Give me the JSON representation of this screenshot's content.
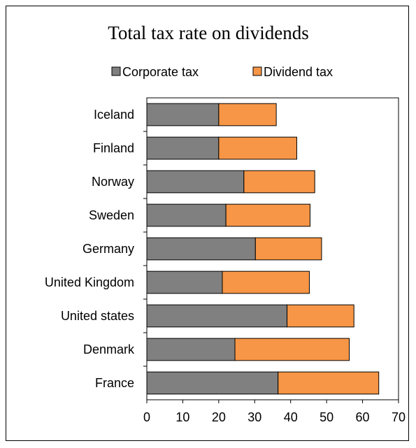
{
  "chart_data": {
    "type": "bar",
    "orientation": "horizontal",
    "stacked": true,
    "title": "Total tax rate on dividends",
    "xlabel": "",
    "ylabel": "",
    "categories": [
      "Iceland",
      "Finland",
      "Norway",
      "Sweden",
      "Germany",
      "United Kingdom",
      "United states",
      "Denmark",
      "France"
    ],
    "series": [
      {
        "name": "Corporate tax",
        "color": "#808080",
        "values": [
          20,
          20,
          27,
          22,
          30.2,
          21,
          39,
          24.5,
          36.5
        ]
      },
      {
        "name": "Dividend tax",
        "color": "#f79646",
        "values": [
          16,
          21.7,
          19.7,
          23.4,
          18.4,
          24.2,
          18.6,
          31.8,
          28
        ]
      }
    ],
    "xlim": [
      0,
      70
    ],
    "xticks": [
      0,
      10,
      20,
      30,
      40,
      50,
      60,
      70
    ],
    "grid": false,
    "legend": "top"
  }
}
